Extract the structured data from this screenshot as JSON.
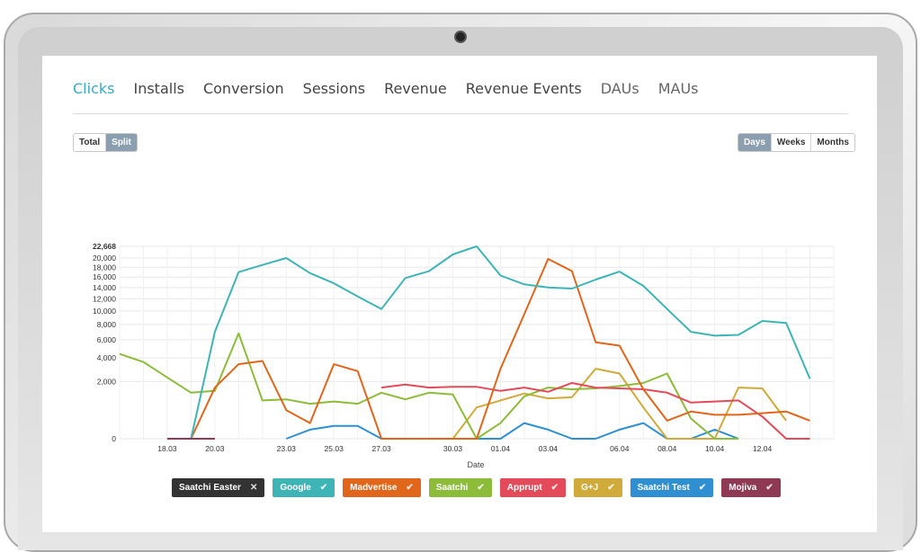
{
  "tabs": [
    "Clicks",
    "Installs",
    "Conversion",
    "Sessions",
    "Revenue",
    "Revenue Events",
    "DAUs",
    "MAUs"
  ],
  "view_toggle": {
    "options": [
      "Total",
      "Split"
    ],
    "selected": "Split"
  },
  "period_toggle": {
    "options": [
      "Days",
      "Weeks",
      "Months"
    ],
    "selected": "Days"
  },
  "colors": {
    "accent": "#3ba9c3",
    "Saatchi Easter": "#333333",
    "Google": "#3fb4b6",
    "Madvertise": "#e0661b",
    "Saatchi": "#8dbb3a",
    "Apprupt": "#e34a5a",
    "G+J": "#d0aa3a",
    "Saatchi Test": "#2f8fd0",
    "Mojiva": "#8e3a55"
  },
  "chart_data": {
    "type": "line",
    "xlabel": "Date",
    "ylabel": "",
    "x": [
      "16.03",
      "17.03",
      "18.03",
      "19.03",
      "20.03",
      "21.03",
      "22.03",
      "23.03",
      "24.03",
      "25.03",
      "26.03",
      "27.03",
      "28.03",
      "29.03",
      "30.03",
      "31.03",
      "01.04",
      "02.04",
      "03.04",
      "04.04",
      "05.04",
      "06.04",
      "07.04",
      "08.04",
      "09.04",
      "10.04",
      "11.04",
      "12.04",
      "13.04",
      "14.04",
      "15.04"
    ],
    "x_tick_labels": [
      "18.03",
      "20.03",
      "23.03",
      "25.03",
      "27.03",
      "30.03",
      "01.04",
      "03.04",
      "06.04",
      "08.04",
      "10.04",
      "12.04"
    ],
    "y_ticks": [
      0,
      2000,
      4000,
      6000,
      8000,
      10000,
      12000,
      14000,
      16000,
      18000,
      20000,
      22668
    ],
    "y_tick_labels": [
      "0",
      "2,000",
      "4,000",
      "6,000",
      "8,000",
      "10,000",
      "12,000",
      "14,000",
      "16,000",
      "18,000",
      "20,000",
      "22,668"
    ],
    "ylim": [
      0,
      22668
    ],
    "y_scale": "sqrt",
    "grid": true,
    "series": [
      {
        "name": "Saatchi Easter",
        "values": [
          null,
          null,
          null,
          null,
          null,
          null,
          null,
          null,
          null,
          null,
          null,
          null,
          null,
          null,
          null,
          null,
          null,
          null,
          null,
          null,
          null,
          null,
          null,
          null,
          null,
          null,
          null,
          null,
          null,
          null,
          null
        ]
      },
      {
        "name": "Google",
        "values": [
          null,
          null,
          null,
          0,
          7000,
          17000,
          18500,
          20000,
          16800,
          14800,
          12400,
          10300,
          15800,
          17200,
          20800,
          22668,
          16300,
          14600,
          14000,
          13800,
          15500,
          17100,
          14300,
          10300,
          7000,
          6500,
          6600,
          8500,
          8200,
          2200,
          null
        ]
      },
      {
        "name": "Madvertise",
        "values": [
          null,
          null,
          null,
          0,
          1600,
          3400,
          3700,
          500,
          150,
          3400,
          2800,
          0,
          0,
          0,
          0,
          0,
          3000,
          9500,
          19800,
          17200,
          5700,
          5300,
          1500,
          200,
          450,
          350,
          350,
          400,
          450,
          200,
          null
        ]
      },
      {
        "name": "Saatchi",
        "values": [
          4400,
          3600,
          2300,
          1300,
          1400,
          6800,
          900,
          950,
          750,
          850,
          750,
          1300,
          950,
          1300,
          1200,
          0,
          150,
          1100,
          1600,
          1500,
          1550,
          1700,
          1900,
          2600,
          250,
          0,
          0,
          null,
          null,
          null,
          null
        ]
      },
      {
        "name": "Apprupt",
        "values": [
          null,
          null,
          null,
          null,
          null,
          null,
          null,
          null,
          null,
          null,
          null,
          1600,
          1800,
          1600,
          1650,
          1650,
          1400,
          1600,
          1350,
          1900,
          1600,
          1550,
          1500,
          1300,
          800,
          850,
          900,
          300,
          0,
          0,
          null
        ]
      },
      {
        "name": "G+J",
        "values": [
          null,
          null,
          null,
          null,
          null,
          null,
          null,
          null,
          null,
          null,
          null,
          0,
          0,
          0,
          0,
          600,
          900,
          1250,
          1000,
          1050,
          3000,
          2600,
          600,
          0,
          0,
          0,
          1600,
          1550,
          200,
          null,
          null
        ]
      },
      {
        "name": "Saatchi Test",
        "values": [
          null,
          null,
          null,
          null,
          null,
          null,
          null,
          0,
          50,
          100,
          100,
          0,
          0,
          0,
          0,
          0,
          0,
          150,
          50,
          0,
          0,
          50,
          150,
          0,
          0,
          50,
          0,
          null,
          null,
          null,
          null
        ]
      },
      {
        "name": "Mojiva",
        "values": [
          null,
          null,
          0,
          0,
          0,
          null,
          null,
          null,
          null,
          null,
          null,
          null,
          null,
          null,
          null,
          null,
          null,
          null,
          null,
          null,
          null,
          null,
          null,
          null,
          null,
          null,
          null,
          null,
          null,
          null,
          null
        ]
      }
    ]
  },
  "legend": [
    {
      "label": "Saatchi Easter",
      "check": "✕",
      "color": "#333333"
    },
    {
      "label": "Google",
      "check": "✔",
      "color": "#3fb4b6"
    },
    {
      "label": "Madvertise",
      "check": "✔",
      "color": "#e0661b"
    },
    {
      "label": "Saatchi",
      "check": "✔",
      "color": "#8dbb3a"
    },
    {
      "label": "Apprupt",
      "check": "✔",
      "color": "#e34a5a"
    },
    {
      "label": "G+J",
      "check": "✔",
      "color": "#d0aa3a"
    },
    {
      "label": "Saatchi Test",
      "check": "✔",
      "color": "#2f8fd0"
    },
    {
      "label": "Mojiva",
      "check": "✔",
      "color": "#8e3a55"
    }
  ]
}
